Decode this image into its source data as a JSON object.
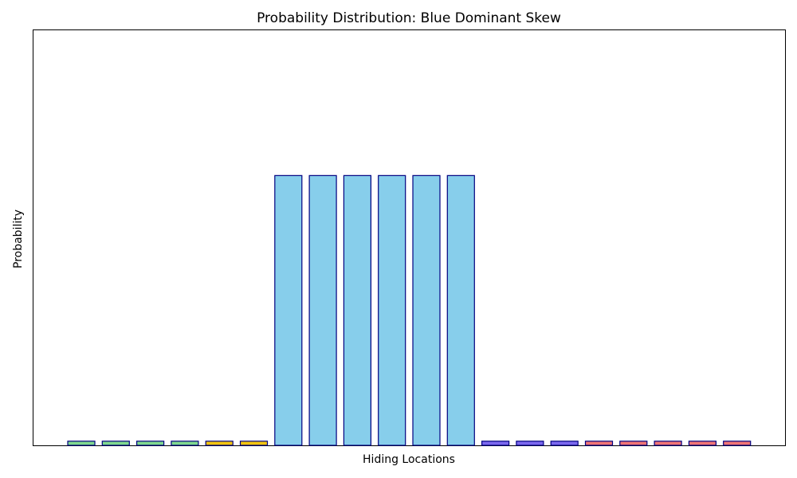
{
  "chart_data": {
    "type": "bar",
    "title": "Probability Distribution: Blue Dominant Skew",
    "xlabel": "Hiding Locations",
    "ylabel": "Probability",
    "ylim": [
      0,
      0.2
    ],
    "grid": false,
    "x_ticks_shown": false,
    "y_ticks_shown": false,
    "edge_color": "#000080",
    "bars": [
      {
        "value": 0.002,
        "color": "#7fd88e"
      },
      {
        "value": 0.002,
        "color": "#7fd88e"
      },
      {
        "value": 0.002,
        "color": "#7fd88e"
      },
      {
        "value": 0.002,
        "color": "#7fd88e"
      },
      {
        "value": 0.002,
        "color": "#f2c40f"
      },
      {
        "value": 0.002,
        "color": "#f2c40f"
      },
      {
        "value": 0.13,
        "color": "#87ceeb"
      },
      {
        "value": 0.13,
        "color": "#87ceeb"
      },
      {
        "value": 0.13,
        "color": "#87ceeb"
      },
      {
        "value": 0.13,
        "color": "#87ceeb"
      },
      {
        "value": 0.13,
        "color": "#87ceeb"
      },
      {
        "value": 0.13,
        "color": "#87ceeb"
      },
      {
        "value": 0.002,
        "color": "#7b68ee"
      },
      {
        "value": 0.002,
        "color": "#7b68ee"
      },
      {
        "value": 0.002,
        "color": "#7b68ee"
      },
      {
        "value": 0.002,
        "color": "#f07474"
      },
      {
        "value": 0.002,
        "color": "#f07474"
      },
      {
        "value": 0.002,
        "color": "#f07474"
      },
      {
        "value": 0.002,
        "color": "#f07474"
      },
      {
        "value": 0.002,
        "color": "#f07474"
      }
    ]
  }
}
